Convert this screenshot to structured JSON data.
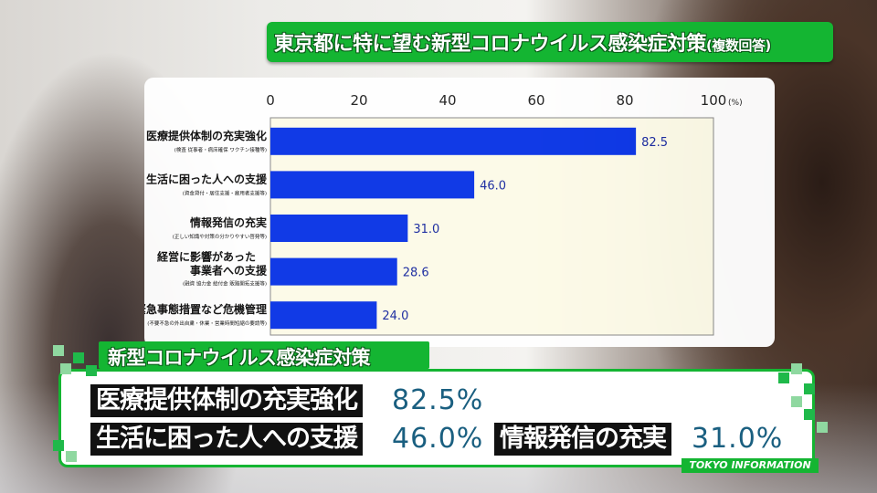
{
  "title": {
    "main": "東京都に特に望む新型コロナウイルス感染症対策",
    "sub": "(複数回答)"
  },
  "chart_data": {
    "type": "bar",
    "orientation": "horizontal",
    "x_ticks": [
      "0",
      "20",
      "40",
      "60",
      "80",
      "100"
    ],
    "x_unit": "(%)",
    "xlim": [
      0,
      100
    ],
    "categories": [
      {
        "label": "医療提供体制の充実強化",
        "note": "(検査 従事者・病床確保 ワクチン接種等)"
      },
      {
        "label": "生活に困った人への支援",
        "note": "(資金貸付・居住支援・雇用者支援等)"
      },
      {
        "label": "情報発信の充実",
        "note": "(正しい知識や対策の分かりやすい啓発等)"
      },
      {
        "label": "経営に影響があった",
        "label2": "事業者への支援",
        "note": "(融資 協力金 給付金 販路開拓支援等)"
      },
      {
        "label": "緊急事態措置など危機管理",
        "note": "(不要不急の外出自粛・休業・営業時間短縮の要請等)"
      }
    ],
    "values": [
      82.5,
      46.0,
      31.0,
      28.6,
      24.0
    ],
    "value_labels": [
      "82.5",
      "46.0",
      "31.0",
      "28.6",
      "24.0"
    ],
    "bar_color": "#0a35e6",
    "background": "#fdfbe8",
    "grid": false
  },
  "lower_third": {
    "header": "新型コロナウイルス感染症対策",
    "item1_label": "医療提供体制の充実強化",
    "item1_value": "82.5%",
    "item2_label": "生活に困った人への支援",
    "item2_value": "46.0%",
    "item3_label": "情報発信の充実",
    "item3_value": "31.0%"
  },
  "credit": "TOKYO INFORMATION",
  "colors": {
    "brand_green": "#14b532",
    "value_blue": "#1a5f80"
  }
}
